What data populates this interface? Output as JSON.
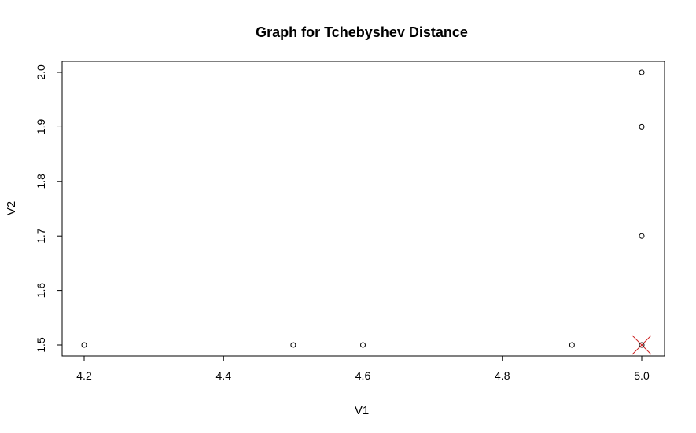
{
  "chart_data": {
    "type": "scatter",
    "title": "Graph for Tchebyshev Distance",
    "xlabel": "V1",
    "ylabel": "V2",
    "xlim": [
      4.2,
      5.0
    ],
    "ylim": [
      1.5,
      2.0
    ],
    "x_ticks": [
      "4.2",
      "4.4",
      "4.6",
      "4.8",
      "5.0"
    ],
    "y_ticks": [
      "1.5",
      "1.6",
      "1.7",
      "1.8",
      "1.9",
      "2.0"
    ],
    "grid": false,
    "legend": "none",
    "series": [
      {
        "marker": "open-circle",
        "color": "#000000",
        "points": [
          {
            "x": 4.2,
            "y": 1.5
          },
          {
            "x": 4.5,
            "y": 1.5
          },
          {
            "x": 4.6,
            "y": 1.5
          },
          {
            "x": 4.9,
            "y": 1.5
          },
          {
            "x": 5.0,
            "y": 1.5
          },
          {
            "x": 5.0,
            "y": 1.7
          },
          {
            "x": 5.0,
            "y": 1.9
          },
          {
            "x": 5.0,
            "y": 2.0
          }
        ]
      },
      {
        "marker": "x-cross",
        "color": "#cc2222",
        "points": [
          {
            "x": 5.0,
            "y": 1.5
          }
        ]
      }
    ]
  }
}
